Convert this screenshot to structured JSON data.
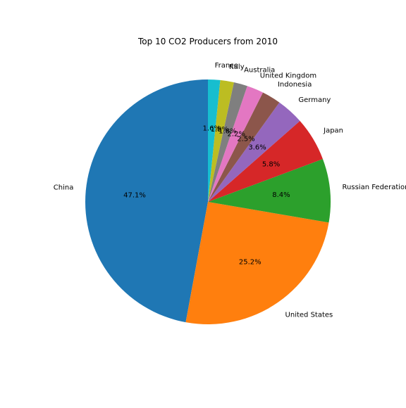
{
  "chart_data": {
    "type": "pie",
    "title": "Top 10 CO2 Producers from 2010",
    "slices": [
      {
        "label": "China",
        "value": 47.1,
        "pct_text": "47.1%",
        "color": "#1f77b4"
      },
      {
        "label": "United States",
        "value": 25.2,
        "pct_text": "25.2%",
        "color": "#ff7f0e"
      },
      {
        "label": "Russian Federation",
        "value": 8.4,
        "pct_text": "8.4%",
        "color": "#2ca02c"
      },
      {
        "label": "Japan",
        "value": 5.8,
        "pct_text": "5.8%",
        "color": "#d62728"
      },
      {
        "label": "Germany",
        "value": 3.6,
        "pct_text": "3.6%",
        "color": "#9467bd"
      },
      {
        "label": "Indonesia",
        "value": 2.5,
        "pct_text": "2.5%",
        "color": "#8c564b"
      },
      {
        "label": "United Kingdom",
        "value": 2.2,
        "pct_text": "2.2%",
        "color": "#e377c2"
      },
      {
        "label": "Australia",
        "value": 1.8,
        "pct_text": "1.8%",
        "color": "#7f7f7f"
      },
      {
        "label": "Italy",
        "value": 1.8,
        "pct_text": "1.8%",
        "color": "#bcbd22"
      },
      {
        "label": "France",
        "value": 1.6,
        "pct_text": "1.6%",
        "color": "#17becf"
      }
    ],
    "start_angle": 90,
    "direction": "counterclockwise",
    "legend": "none"
  }
}
